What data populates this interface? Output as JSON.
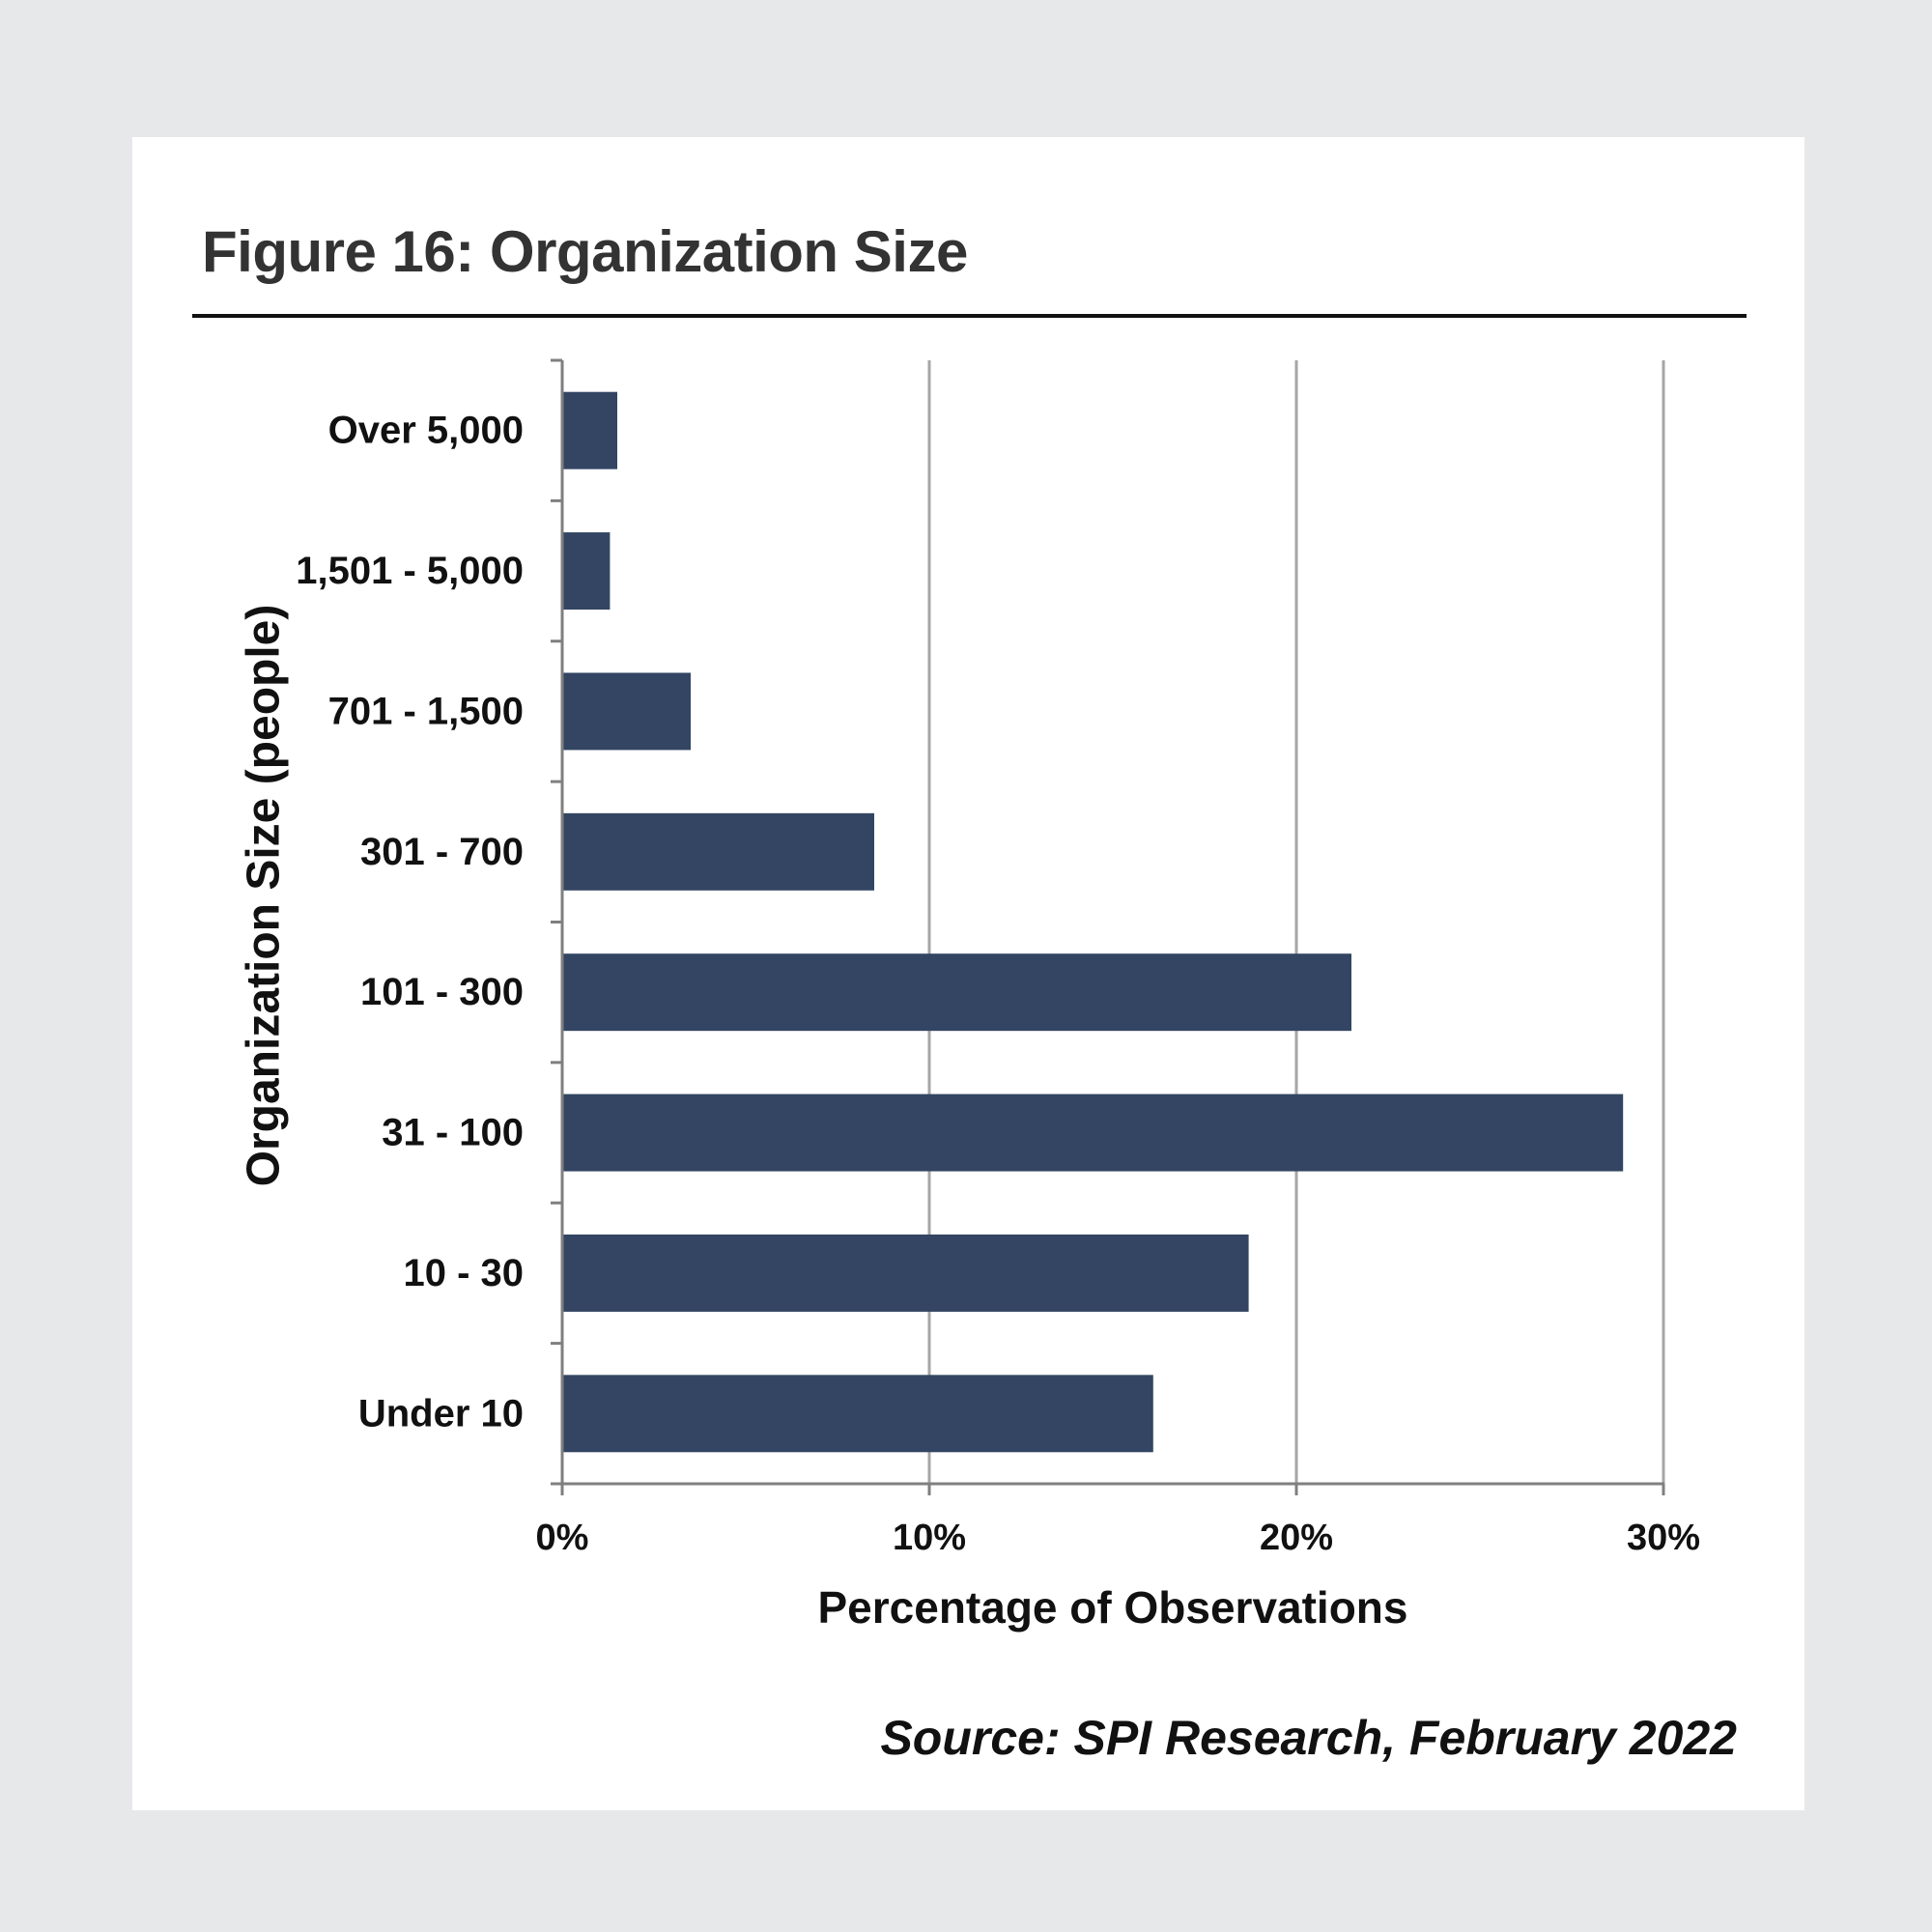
{
  "figure": {
    "title": "Figure 16:  Organization Size",
    "source": "Source: SPI Research, February 2022"
  },
  "chart_data": {
    "type": "bar",
    "orientation": "horizontal",
    "categories": [
      "Over 5,000",
      "1,501 - 5,000",
      "701 - 1,500",
      "301 - 700",
      "101 - 300",
      "31 - 100",
      "10 - 30",
      "Under 10"
    ],
    "values": [
      1.5,
      1.3,
      3.5,
      8.5,
      21.5,
      28.9,
      18.7,
      16.1
    ],
    "xlabel": "Percentage of Observations",
    "ylabel": "Organization Size (people)",
    "xlim": [
      0,
      30
    ],
    "xticks": [
      0,
      10,
      20,
      30
    ],
    "xtick_labels": [
      "0%",
      "10%",
      "20%",
      "30%"
    ],
    "grid": "vertical",
    "legend": "none",
    "colors": {
      "bar": "#334562",
      "grid": "#a6a6a6",
      "axis": "#7f7f7f",
      "text": "#111111",
      "background": "#ffffff"
    }
  }
}
